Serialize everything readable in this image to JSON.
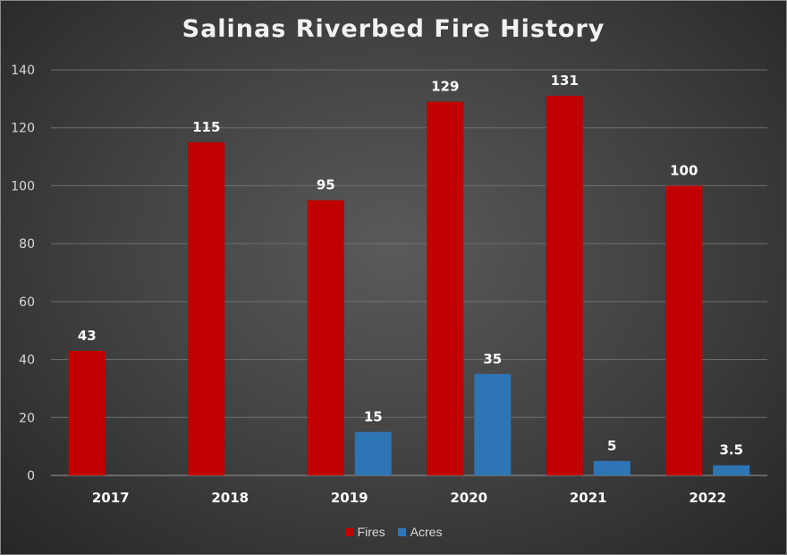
{
  "chart_data": {
    "type": "bar",
    "title": "Salinas Riverbed Fire History",
    "categories": [
      "2017",
      "2018",
      "2019",
      "2020",
      "2021",
      "2022"
    ],
    "series": [
      {
        "name": "Fires",
        "values": [
          43,
          115,
          95,
          129,
          131,
          100
        ],
        "labels": [
          "43",
          "115",
          "95",
          "129",
          "131",
          "100"
        ],
        "color": "#c00000"
      },
      {
        "name": "Acres",
        "values": [
          null,
          null,
          15,
          35,
          5,
          3.5
        ],
        "labels": [
          "",
          "",
          "15",
          "35",
          "5",
          "3.5"
        ],
        "color": "#2e75b6"
      }
    ],
    "ylim": [
      0,
      140
    ],
    "yticks": [
      0,
      20,
      40,
      60,
      80,
      100,
      120,
      140
    ],
    "ytick_labels": [
      "0",
      "20",
      "40",
      "60",
      "80",
      "100",
      "120",
      "140"
    ],
    "xlabel": "",
    "ylabel": "",
    "grid": true,
    "legend_position": "bottom"
  }
}
